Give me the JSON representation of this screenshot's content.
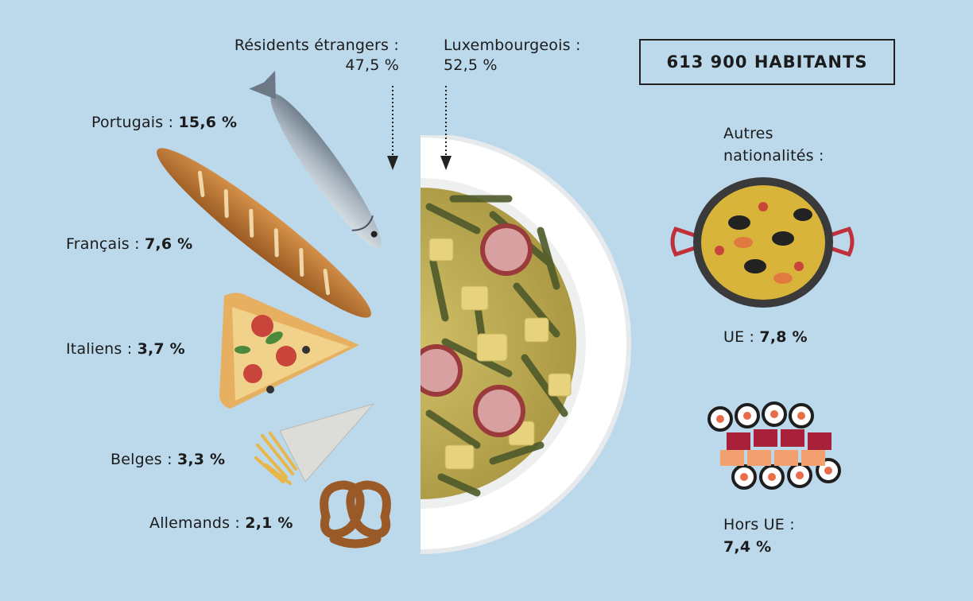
{
  "total": "613 900 HABITANTS",
  "foreign": {
    "label": "Résidents étrangers :",
    "value": "47,5 %"
  },
  "lux": {
    "label": "Luxembourgeois :",
    "value": "52,5 %"
  },
  "groups": {
    "portugais": {
      "label": "Portugais :",
      "value": "15,6 %",
      "icon": "sardine-icon"
    },
    "francais": {
      "label": "Français :",
      "value": "7,6 %",
      "icon": "baguette-icon"
    },
    "italiens": {
      "label": "Italiens :",
      "value": "3,7 %",
      "icon": "pizza-slice-icon"
    },
    "belges": {
      "label": "Belges :",
      "value": "3,3 %",
      "icon": "fries-cone-icon"
    },
    "allemands": {
      "label": "Allemands :",
      "value": "2,1 %",
      "icon": "pretzel-icon"
    }
  },
  "autres": {
    "title_line1": "Autres",
    "title_line2": "nationalités :"
  },
  "ue": {
    "label": "UE :",
    "value": "7,8 %",
    "icon": "paella-pan-icon"
  },
  "hors_ue": {
    "label": "Hors UE :",
    "value": "7,4 %",
    "icon": "sushi-icon"
  },
  "colors": {
    "background": "#bcd9ec",
    "plate": "#ffffff",
    "soup": "#c8b55a",
    "beans": "#4e5a2a"
  }
}
